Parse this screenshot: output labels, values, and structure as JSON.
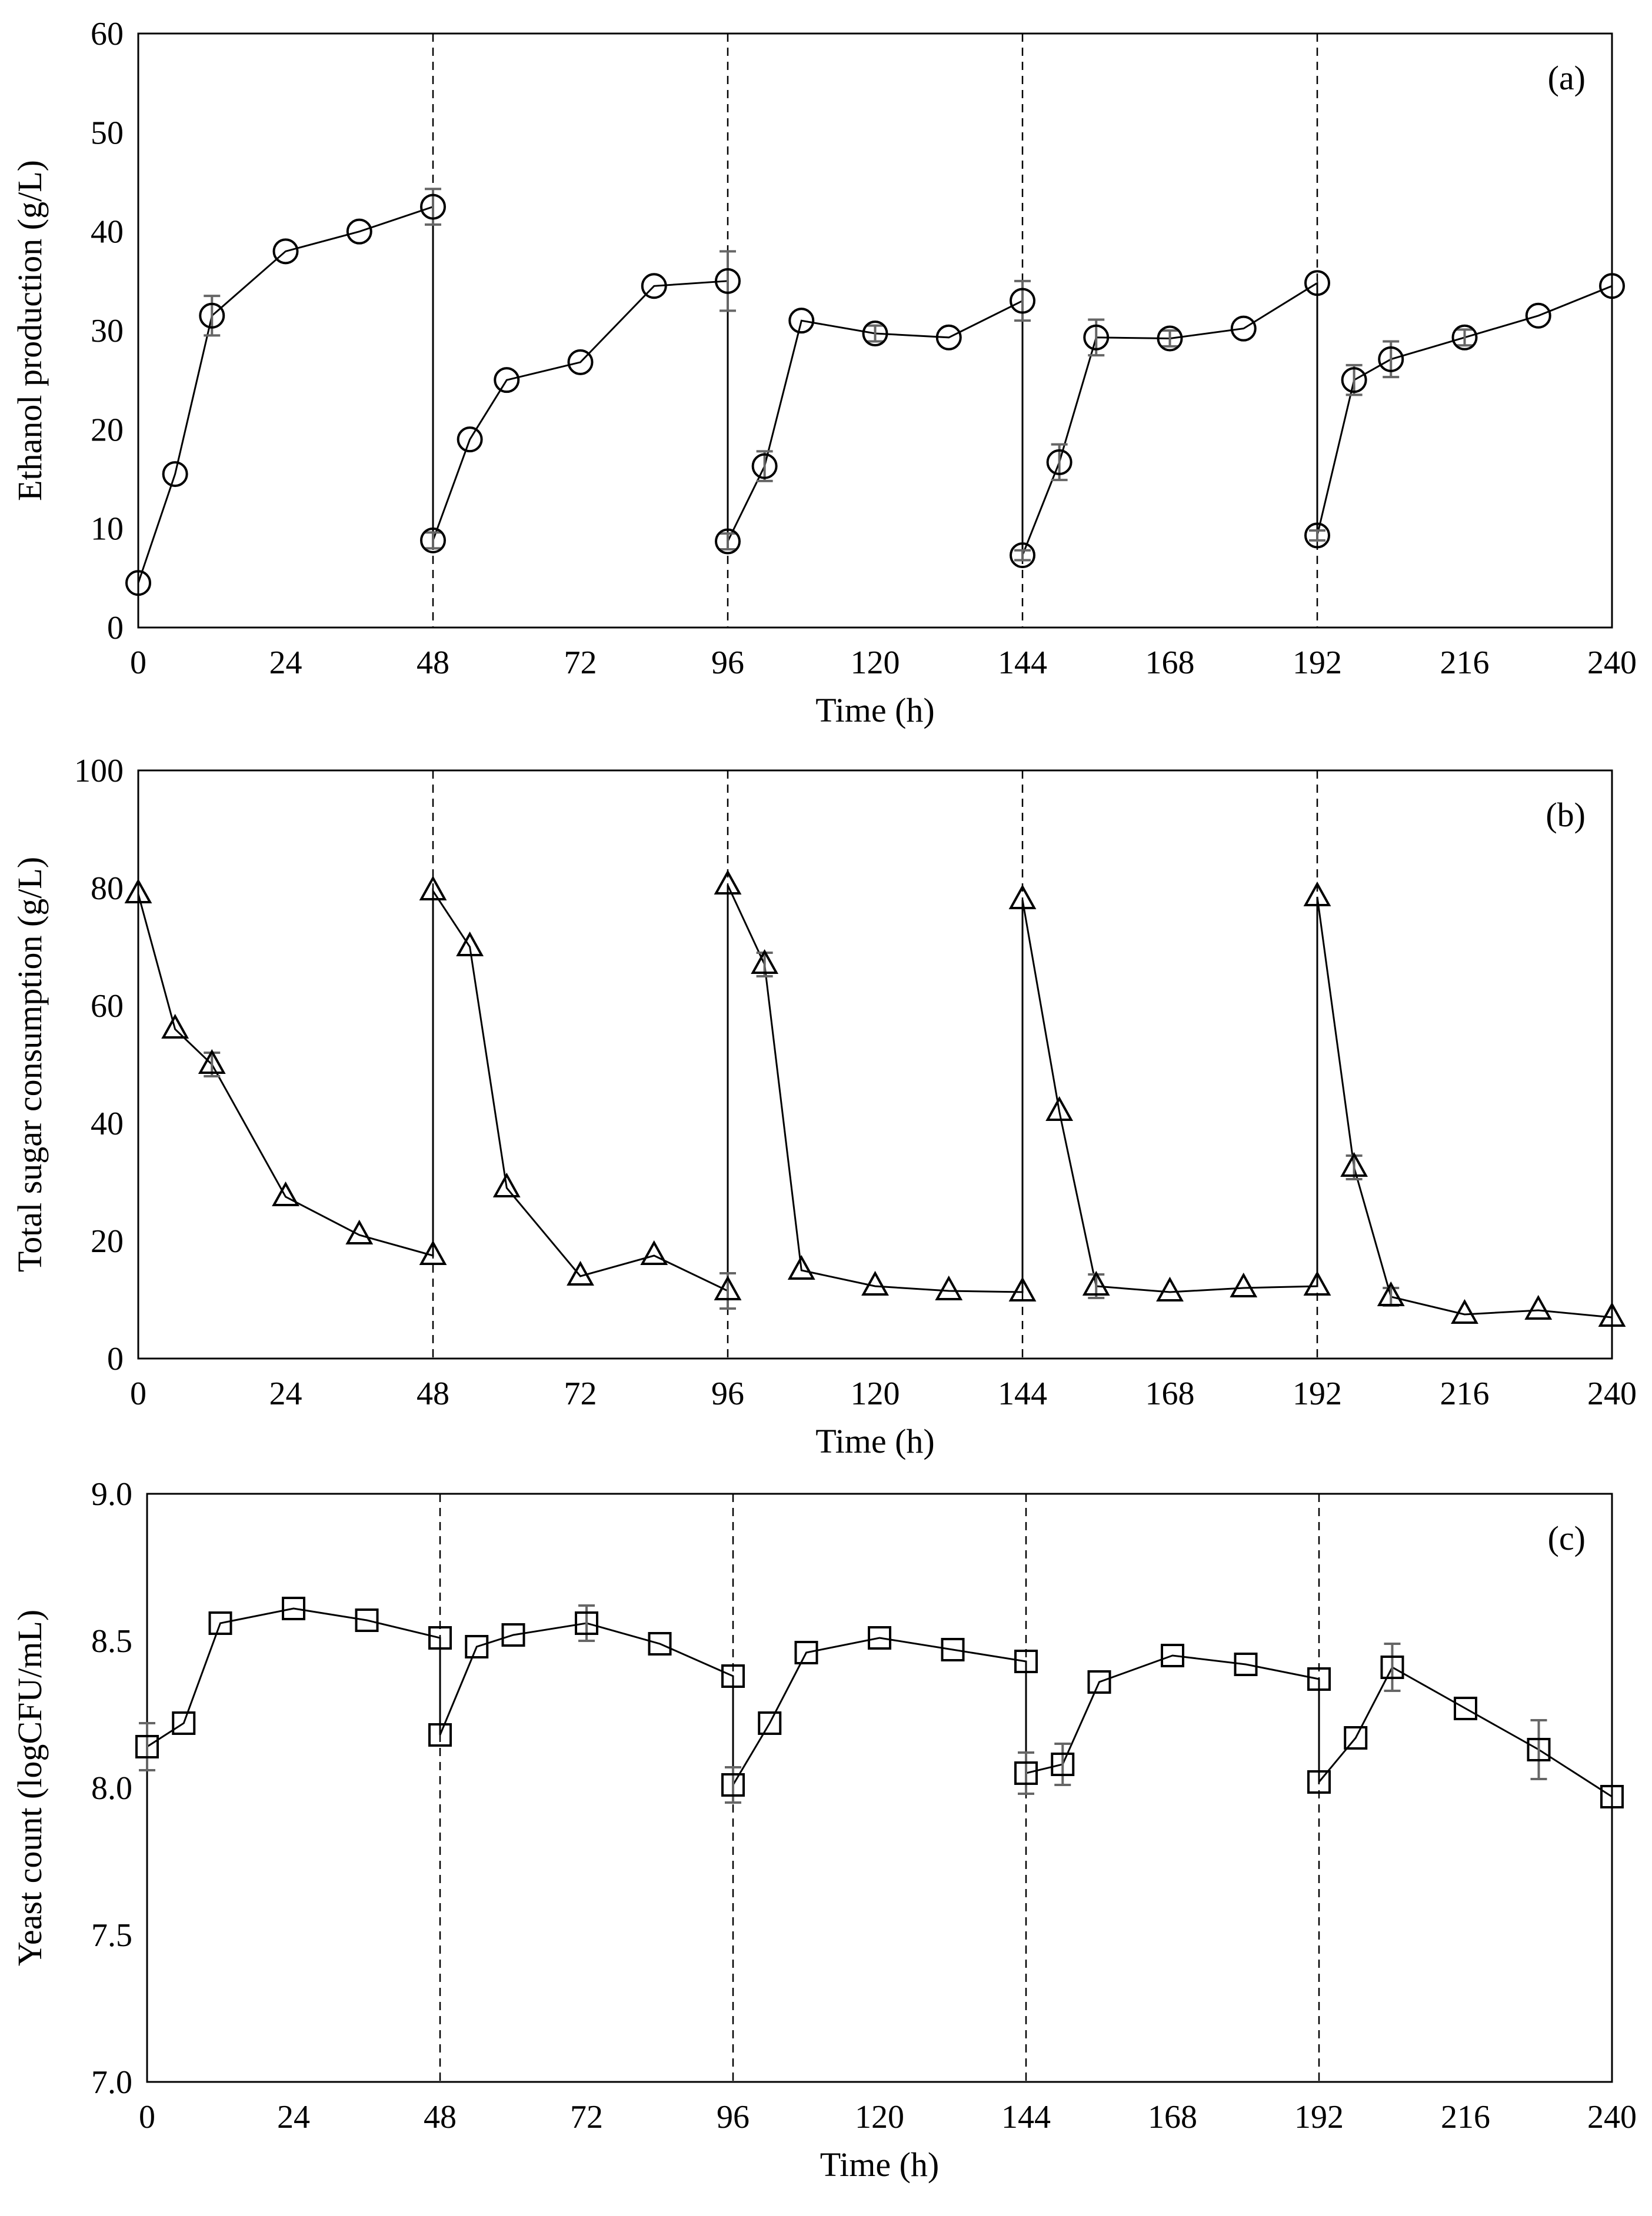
{
  "chart_data": [
    {
      "type": "line",
      "panel_label": "(a)",
      "xlabel": "Time (h)",
      "ylabel": "Ethanol production (g/L)",
      "xlim": [
        0,
        240
      ],
      "ylim": [
        0,
        60
      ],
      "xticks": [
        "0",
        "24",
        "48",
        "72",
        "96",
        "120",
        "144",
        "168",
        "192",
        "216",
        "240"
      ],
      "yticks": [
        "0",
        "10",
        "20",
        "30",
        "40",
        "50",
        "60"
      ],
      "marker": "circle",
      "grid": false,
      "batch_boundaries": [
        48,
        96,
        144,
        192
      ],
      "series": [
        {
          "x": [
            0,
            6,
            12,
            24,
            36,
            48,
            48,
            54,
            60,
            72,
            84,
            96,
            96,
            102,
            108,
            120,
            132,
            144,
            144,
            150,
            156,
            168,
            180,
            192,
            192,
            198,
            204,
            216,
            228,
            240
          ],
          "y": [
            4.5,
            15.5,
            31.5,
            38,
            40,
            42.5,
            8.8,
            19,
            25,
            26.8,
            34.5,
            35,
            8.7,
            16.3,
            31,
            29.7,
            29.3,
            33,
            7.3,
            16.7,
            29.3,
            29.2,
            30.2,
            34.8,
            9.3,
            25,
            27.1,
            29.3,
            31.5,
            34.5
          ],
          "err": [
            0,
            0,
            2,
            0,
            0,
            1.8,
            0.8,
            0,
            0,
            0,
            0,
            3,
            0.8,
            1.5,
            0,
            0.8,
            0,
            2,
            0.5,
            1.8,
            1.8,
            0.8,
            0,
            0,
            0.5,
            1.5,
            1.8,
            0.8,
            0,
            0
          ]
        }
      ]
    },
    {
      "type": "line",
      "panel_label": "(b)",
      "xlabel": "Time (h)",
      "ylabel": "Total sugar consumption (g/L)",
      "xlim": [
        0,
        240
      ],
      "ylim": [
        0,
        100
      ],
      "xticks": [
        "0",
        "24",
        "48",
        "72",
        "96",
        "120",
        "144",
        "168",
        "192",
        "216",
        "240"
      ],
      "yticks": [
        "0",
        "20",
        "40",
        "60",
        "80",
        "100"
      ],
      "marker": "triangle",
      "grid": false,
      "batch_boundaries": [
        48,
        96,
        144,
        192
      ],
      "series": [
        {
          "x": [
            0,
            6,
            12,
            24,
            36,
            48,
            48,
            54,
            60,
            72,
            84,
            96,
            96,
            102,
            108,
            120,
            132,
            144,
            144,
            150,
            156,
            168,
            180,
            192,
            192,
            198,
            204,
            216,
            228,
            240
          ],
          "y": [
            79,
            56,
            50,
            27.5,
            21,
            17.5,
            79.5,
            70,
            29,
            14,
            17.5,
            11.5,
            80.5,
            67,
            15,
            12.3,
            11.5,
            11.3,
            78,
            42,
            12.3,
            11.3,
            12,
            12.3,
            78.5,
            32.5,
            10.5,
            7.5,
            8.2,
            7
          ],
          "err": [
            0,
            0,
            2,
            0,
            0,
            0,
            0,
            0,
            0,
            0,
            0,
            3,
            0,
            2,
            0,
            0,
            0,
            0,
            0,
            0,
            2,
            0,
            0,
            0,
            0,
            2,
            1.5,
            0,
            0,
            0
          ]
        }
      ]
    },
    {
      "type": "line",
      "panel_label": "(c)",
      "xlabel": "Time (h)",
      "ylabel": "Yeast count (logCFU/mL)",
      "xlim": [
        0,
        240
      ],
      "ylim": [
        7.0,
        9.0
      ],
      "xticks": [
        "0",
        "24",
        "48",
        "72",
        "96",
        "120",
        "144",
        "168",
        "192",
        "216",
        "240"
      ],
      "yticks": [
        "7.0",
        "7.5",
        "8.0",
        "8.5",
        "9.0"
      ],
      "marker": "square",
      "grid": false,
      "batch_boundaries": [
        48,
        96,
        144,
        192
      ],
      "series": [
        {
          "x": [
            0,
            6,
            12,
            24,
            36,
            48,
            48,
            54,
            60,
            72,
            84,
            96,
            96,
            102,
            108,
            120,
            132,
            144,
            144,
            150,
            156,
            168,
            180,
            192,
            192,
            198,
            204,
            216,
            228,
            240
          ],
          "y": [
            8.14,
            8.22,
            8.56,
            8.61,
            8.57,
            8.51,
            8.18,
            8.48,
            8.52,
            8.56,
            8.49,
            8.38,
            8.01,
            8.22,
            8.46,
            8.51,
            8.47,
            8.43,
            8.05,
            8.08,
            8.36,
            8.45,
            8.42,
            8.37,
            8.02,
            8.17,
            8.41,
            8.27,
            8.13,
            7.97
          ],
          "err": [
            0.08,
            0,
            0,
            0,
            0,
            0,
            0,
            0,
            0,
            0.06,
            0,
            0,
            0.06,
            0,
            0,
            0,
            0,
            0,
            0.07,
            0.07,
            0,
            0,
            0,
            0,
            0,
            0,
            0.08,
            0,
            0.1,
            0
          ]
        }
      ]
    }
  ]
}
